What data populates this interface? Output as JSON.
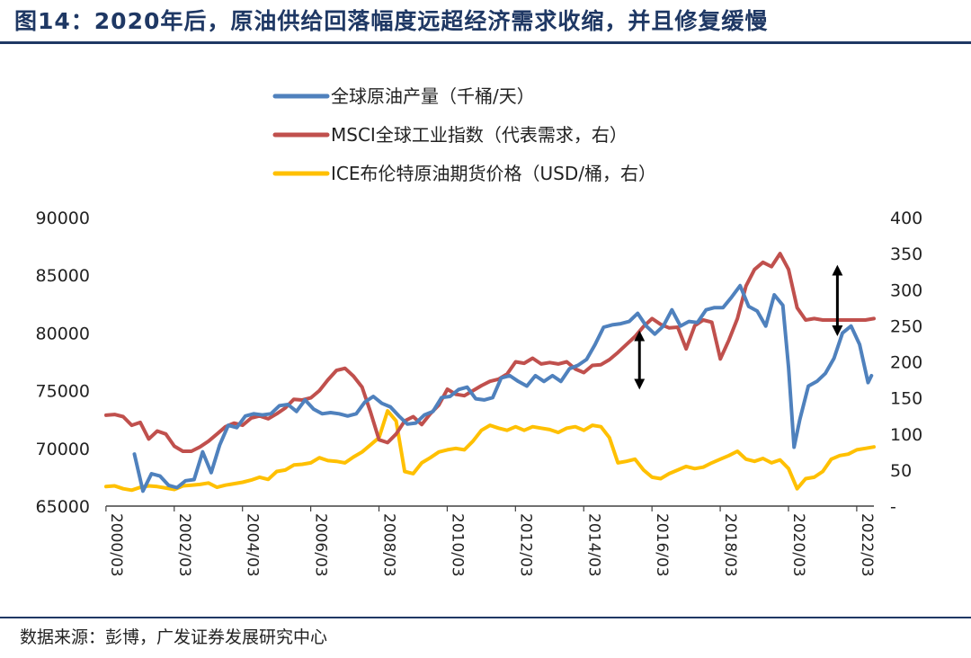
{
  "header": {
    "title": "图14：2020年后，原油供给回落幅度远超经济需求收缩，并且修复缓慢"
  },
  "footer": {
    "source": "数据来源：彭博，广发证券发展研究中心"
  },
  "colors": {
    "title": "#1f3864",
    "production": "#4f81bd",
    "msci": "#c0504d",
    "brent": "#ffc000",
    "axis": "#404040"
  },
  "chart_data": {
    "type": "line",
    "title": "",
    "xlabel": "",
    "ylabel": "",
    "ylabel_right": "",
    "x_tick_labels": [
      "2000/03",
      "2002/03",
      "2004/03",
      "2006/03",
      "2008/03",
      "2010/03",
      "2012/03",
      "2014/03",
      "2016/03",
      "2018/03",
      "2020/03",
      "2022/03"
    ],
    "x_range": [
      2000.17,
      2022.67
    ],
    "y_left": {
      "range": [
        65000,
        90000
      ],
      "ticks": [
        "90000",
        "85000",
        "80000",
        "75000",
        "70000",
        "65000"
      ]
    },
    "y_right": {
      "range": [
        0,
        400
      ],
      "ticks": [
        "400",
        "350",
        "300",
        "250",
        "200",
        "150",
        "100",
        "50",
        "-"
      ]
    },
    "legend_position": "top-center",
    "annotations": [
      {
        "type": "double-arrow",
        "x": 2015.8,
        "from": 169,
        "to": 236,
        "axis": "right"
      },
      {
        "type": "double-arrow",
        "x": 2021.6,
        "from": 243,
        "to": 327,
        "axis": "right"
      }
    ],
    "series": [
      {
        "name": "全球原油产量（千桶/天）",
        "axis": "left",
        "x": [
          2001.0,
          2001.25,
          2001.5,
          2001.75,
          2002.0,
          2002.25,
          2002.5,
          2002.75,
          2003.0,
          2003.25,
          2003.5,
          2003.75,
          2004.0,
          2004.25,
          2004.5,
          2004.75,
          2005.0,
          2005.25,
          2005.5,
          2005.75,
          2006.0,
          2006.25,
          2006.5,
          2006.75,
          2007.0,
          2007.25,
          2007.5,
          2007.75,
          2008.0,
          2008.25,
          2008.5,
          2008.75,
          2009.0,
          2009.25,
          2009.5,
          2009.75,
          2010.0,
          2010.25,
          2010.5,
          2010.75,
          2011.0,
          2011.25,
          2011.5,
          2011.75,
          2012.0,
          2012.25,
          2012.5,
          2012.75,
          2013.0,
          2013.25,
          2013.5,
          2013.75,
          2014.0,
          2014.25,
          2014.5,
          2014.75,
          2015.0,
          2015.25,
          2015.5,
          2015.75,
          2016.0,
          2016.25,
          2016.5,
          2016.75,
          2017.0,
          2017.25,
          2017.5,
          2017.75,
          2018.0,
          2018.25,
          2018.5,
          2018.75,
          2019.0,
          2019.25,
          2019.5,
          2019.75,
          2020.0,
          2020.17,
          2020.33,
          2020.5,
          2020.75,
          2021.0,
          2021.25,
          2021.5,
          2021.75,
          2022.0,
          2022.25,
          2022.5,
          2022.6
        ],
        "values": [
          69500,
          66300,
          67800,
          67600,
          66800,
          66600,
          67200,
          67300,
          69700,
          67900,
          70300,
          72000,
          71800,
          72800,
          73000,
          72900,
          73000,
          73700,
          73800,
          73200,
          74200,
          73400,
          73000,
          73100,
          73000,
          72800,
          73000,
          74000,
          74500,
          73900,
          73600,
          72800,
          72100,
          72200,
          72900,
          73200,
          74400,
          74500,
          75100,
          75300,
          74300,
          74200,
          74400,
          76100,
          76300,
          75800,
          75400,
          76300,
          75800,
          76300,
          75800,
          76900,
          77200,
          77700,
          79000,
          80500,
          80700,
          80800,
          81000,
          81700,
          80600,
          79900,
          80600,
          82000,
          80600,
          81000,
          80900,
          82000,
          82200,
          82200,
          83100,
          84100,
          82300,
          81900,
          80600,
          83300,
          82400,
          77000,
          70100,
          72500,
          75400,
          75800,
          76500,
          77800,
          80000,
          80600,
          79000,
          75700,
          76300
        ]
      },
      {
        "name": "MSCI全球工业指数（代表需求，右）",
        "axis": "right",
        "x": [
          2000.17,
          2000.42,
          2000.67,
          2000.92,
          2001.17,
          2001.42,
          2001.67,
          2001.92,
          2002.17,
          2002.42,
          2002.67,
          2002.92,
          2003.17,
          2003.42,
          2003.67,
          2003.92,
          2004.17,
          2004.42,
          2004.67,
          2004.92,
          2005.17,
          2005.42,
          2005.67,
          2005.92,
          2006.17,
          2006.42,
          2006.67,
          2006.92,
          2007.17,
          2007.42,
          2007.67,
          2007.92,
          2008.17,
          2008.42,
          2008.67,
          2008.92,
          2009.17,
          2009.42,
          2009.67,
          2009.92,
          2010.17,
          2010.42,
          2010.67,
          2010.92,
          2011.17,
          2011.42,
          2011.67,
          2011.92,
          2012.17,
          2012.42,
          2012.67,
          2012.92,
          2013.17,
          2013.42,
          2013.67,
          2013.92,
          2014.17,
          2014.42,
          2014.67,
          2014.92,
          2015.17,
          2015.42,
          2015.67,
          2015.92,
          2016.17,
          2016.42,
          2016.67,
          2016.92,
          2017.17,
          2017.42,
          2017.67,
          2017.92,
          2018.17,
          2018.42,
          2018.67,
          2018.92,
          2019.17,
          2019.42,
          2019.67,
          2019.92,
          2020.17,
          2020.42,
          2020.67,
          2020.92,
          2021.17,
          2021.42,
          2021.67,
          2021.92,
          2022.17,
          2022.42,
          2022.67
        ],
        "values": [
          126,
          127,
          124,
          112,
          116,
          93,
          104,
          100,
          83,
          76,
          76,
          82,
          90,
          100,
          110,
          115,
          112,
          122,
          125,
          121,
          128,
          136,
          148,
          147,
          150,
          160,
          175,
          188,
          191,
          180,
          165,
          130,
          92,
          88,
          100,
          118,
          124,
          113,
          128,
          140,
          162,
          155,
          153,
          160,
          167,
          173,
          176,
          183,
          200,
          198,
          205,
          197,
          199,
          197,
          200,
          190,
          185,
          195,
          196,
          203,
          213,
          224,
          235,
          249,
          260,
          252,
          247,
          248,
          218,
          250,
          258,
          255,
          204,
          230,
          260,
          305,
          328,
          338,
          332,
          350,
          328,
          275,
          258,
          260,
          258,
          258,
          258,
          258,
          258,
          258,
          260
        ]
      },
      {
        "name": "ICE布伦特原油期货价格（USD/桶，右）",
        "axis": "right",
        "x": [
          2000.17,
          2000.42,
          2000.67,
          2000.92,
          2001.17,
          2001.42,
          2001.67,
          2001.92,
          2002.17,
          2002.42,
          2002.67,
          2002.92,
          2003.17,
          2003.42,
          2003.67,
          2003.92,
          2004.17,
          2004.42,
          2004.67,
          2004.92,
          2005.17,
          2005.42,
          2005.67,
          2005.92,
          2006.17,
          2006.42,
          2006.67,
          2006.92,
          2007.17,
          2007.42,
          2007.67,
          2007.92,
          2008.17,
          2008.42,
          2008.67,
          2008.92,
          2009.17,
          2009.42,
          2009.67,
          2009.92,
          2010.17,
          2010.42,
          2010.67,
          2010.92,
          2011.17,
          2011.42,
          2011.67,
          2011.92,
          2012.17,
          2012.42,
          2012.67,
          2012.92,
          2013.17,
          2013.42,
          2013.67,
          2013.92,
          2014.17,
          2014.42,
          2014.67,
          2014.92,
          2015.17,
          2015.42,
          2015.67,
          2015.92,
          2016.17,
          2016.42,
          2016.67,
          2016.92,
          2017.17,
          2017.42,
          2017.67,
          2017.92,
          2018.17,
          2018.42,
          2018.67,
          2018.92,
          2019.17,
          2019.42,
          2019.67,
          2019.92,
          2020.17,
          2020.42,
          2020.67,
          2020.92,
          2021.17,
          2021.42,
          2021.67,
          2021.92,
          2022.17,
          2022.42,
          2022.67
        ],
        "values": [
          27,
          28,
          24,
          22,
          26,
          28,
          27,
          25,
          23,
          28,
          29,
          30,
          32,
          26,
          29,
          31,
          33,
          36,
          40,
          37,
          48,
          50,
          57,
          58,
          60,
          67,
          63,
          62,
          60,
          68,
          75,
          85,
          95,
          132,
          118,
          48,
          45,
          60,
          67,
          75,
          78,
          80,
          78,
          90,
          105,
          112,
          108,
          105,
          110,
          105,
          110,
          108,
          106,
          102,
          108,
          110,
          105,
          112,
          110,
          95,
          60,
          62,
          65,
          50,
          40,
          38,
          45,
          50,
          55,
          52,
          54,
          60,
          65,
          70,
          76,
          65,
          62,
          66,
          60,
          64,
          52,
          24,
          38,
          40,
          48,
          65,
          70,
          72,
          78,
          80,
          82
        ]
      }
    ]
  }
}
